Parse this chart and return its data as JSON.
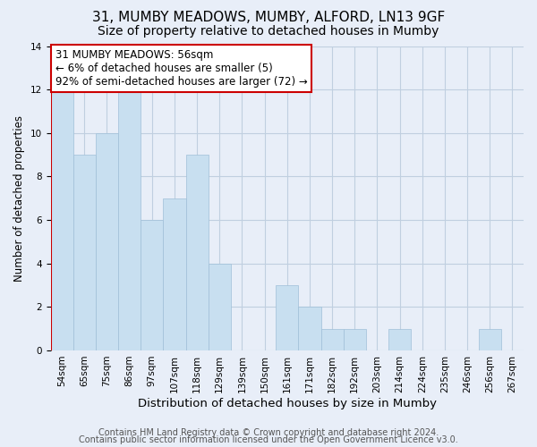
{
  "title": "31, MUMBY MEADOWS, MUMBY, ALFORD, LN13 9GF",
  "subtitle": "Size of property relative to detached houses in Mumby",
  "xlabel": "Distribution of detached houses by size in Mumby",
  "ylabel": "Number of detached properties",
  "categories": [
    "54sqm",
    "65sqm",
    "75sqm",
    "86sqm",
    "97sqm",
    "107sqm",
    "118sqm",
    "129sqm",
    "139sqm",
    "150sqm",
    "161sqm",
    "171sqm",
    "182sqm",
    "192sqm",
    "203sqm",
    "214sqm",
    "224sqm",
    "235sqm",
    "246sqm",
    "256sqm",
    "267sqm"
  ],
  "values": [
    12,
    9,
    10,
    12,
    6,
    7,
    9,
    4,
    0,
    0,
    3,
    2,
    1,
    1,
    0,
    1,
    0,
    0,
    0,
    1,
    0
  ],
  "bar_color": "#c8dff0",
  "bar_edge_color": "#a0bfd8",
  "annotation_text": "31 MUMBY MEADOWS: 56sqm\n← 6% of detached houses are smaller (5)\n92% of semi-detached houses are larger (72) →",
  "annotation_box_facecolor": "#ffffff",
  "annotation_box_edgecolor": "#cc0000",
  "ylim": [
    0,
    14
  ],
  "yticks": [
    0,
    2,
    4,
    6,
    8,
    10,
    12,
    14
  ],
  "footer_line1": "Contains HM Land Registry data © Crown copyright and database right 2024.",
  "footer_line2": "Contains public sector information licensed under the Open Government Licence v3.0.",
  "background_color": "#e8eef8",
  "plot_background_color": "#e8eef8",
  "grid_color": "#c0cfe0",
  "title_fontsize": 11,
  "subtitle_fontsize": 10,
  "xlabel_fontsize": 9.5,
  "ylabel_fontsize": 8.5,
  "tick_fontsize": 7.5,
  "footer_fontsize": 7,
  "annotation_fontsize": 8.5,
  "vertical_line_color": "#cc0000",
  "vertical_line_x": -0.5
}
